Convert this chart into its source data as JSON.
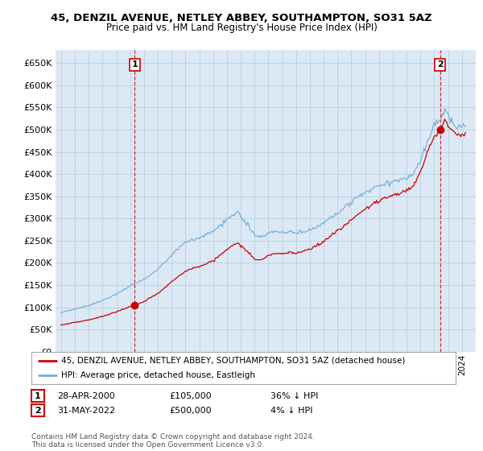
{
  "title": "45, DENZIL AVENUE, NETLEY ABBEY, SOUTHAMPTON, SO31 5AZ",
  "subtitle": "Price paid vs. HM Land Registry's House Price Index (HPI)",
  "property_label": "45, DENZIL AVENUE, NETLEY ABBEY, SOUTHAMPTON, SO31 5AZ (detached house)",
  "hpi_label": "HPI: Average price, detached house, Eastleigh",
  "sale1_label": "1",
  "sale1_date": "28-APR-2000",
  "sale1_price": "£105,000",
  "sale1_hpi": "36% ↓ HPI",
  "sale2_label": "2",
  "sale2_date": "31-MAY-2022",
  "sale2_price": "£500,000",
  "sale2_hpi": "4% ↓ HPI",
  "footer": "Contains HM Land Registry data © Crown copyright and database right 2024.\nThis data is licensed under the Open Government Licence v3.0.",
  "property_color": "#cc0000",
  "hpi_color": "#7aaed6",
  "plot_bg_color": "#dce9f5",
  "background_color": "#ffffff",
  "grid_color": "#b8cfe0",
  "ylim": [
    0,
    680000
  ],
  "yticks": [
    0,
    50000,
    100000,
    150000,
    200000,
    250000,
    300000,
    350000,
    400000,
    450000,
    500000,
    550000,
    600000,
    650000
  ],
  "sale1_x": 2000.32,
  "sale1_y": 105000,
  "sale2_x": 2022.42,
  "sale2_y": 500000,
  "xlim_left": 1994.6,
  "xlim_right": 2025.0
}
